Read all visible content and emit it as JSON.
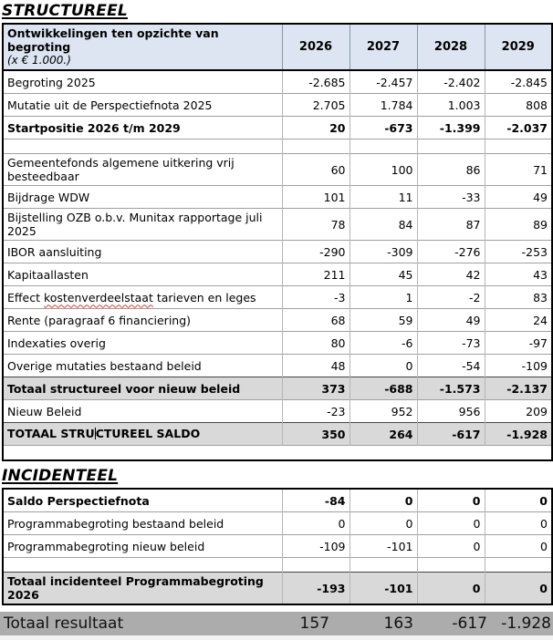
{
  "titles": {
    "structureel": "STRUCTUREEL",
    "incidenteel": "INCIDENTEEL"
  },
  "colors": {
    "header_bg": "#DCE5F1",
    "total_row_bg": "#D9D9D9",
    "result_bar_bg": "#ACACAC",
    "spell_underline": "#E03C31"
  },
  "table_header": {
    "title": "Ontwikkelingen ten opzichte van begroting",
    "subtitle": "(x € 1.000.)",
    "years": [
      "2026",
      "2027",
      "2028",
      "2029"
    ]
  },
  "structureel_rows": [
    {
      "label": "Begroting 2025",
      "values": [
        "-2.685",
        "-2.457",
        "-2.402",
        "-2.845"
      ]
    },
    {
      "label": "Mutatie uit de Perspectiefnota 2025",
      "values": [
        "2.705",
        "1.784",
        "1.003",
        "808"
      ]
    },
    {
      "label": "Startpositie 2026 t/m 2029",
      "values": [
        "20",
        "-673",
        "-1.399",
        "-2.037"
      ],
      "bold": true
    },
    {
      "empty": true
    },
    {
      "label": "Gemeentefonds algemene uitkering vrij besteedbaar",
      "values": [
        "60",
        "100",
        "86",
        "71"
      ]
    },
    {
      "label": "Bijdrage WDW",
      "values": [
        "101",
        "11",
        "-33",
        "49"
      ]
    },
    {
      "label": "Bijstelling OZB o.b.v. Munitax rapportage juli 2025",
      "values": [
        "78",
        "84",
        "87",
        "89"
      ]
    },
    {
      "label": "IBOR aansluiting",
      "values": [
        "-290",
        "-309",
        "-276",
        "-253"
      ]
    },
    {
      "label": "Kapitaallasten",
      "values": [
        "211",
        "45",
        "42",
        "43"
      ]
    },
    {
      "label_parts": [
        "Effect ",
        {
          "spell": "kostenverdeelstaat"
        },
        " tarieven en leges"
      ],
      "values": [
        "-3",
        "1",
        "-2",
        "83"
      ]
    },
    {
      "label": "Rente (paragraaf 6 financiering)",
      "values": [
        "68",
        "59",
        "49",
        "24"
      ]
    },
    {
      "label": "Indexaties overig",
      "values": [
        "80",
        "-6",
        "-73",
        "-97"
      ]
    },
    {
      "label": "Overige mutaties bestaand beleid",
      "values": [
        "48",
        "0",
        "-54",
        "-109"
      ]
    },
    {
      "label": "Totaal structureel voor nieuw beleid",
      "values": [
        "373",
        "-688",
        "-1.573",
        "-2.137"
      ],
      "bold": true,
      "gray": true
    },
    {
      "label": "Nieuw Beleid",
      "values": [
        "-23",
        "952",
        "956",
        "209"
      ]
    },
    {
      "label_parts": [
        "TOTAAL STRU",
        {
          "caret": true
        },
        "CTUREEL SALDO"
      ],
      "values": [
        "350",
        "264",
        "-617",
        "-1.928"
      ],
      "bold": true,
      "gray": true
    },
    {
      "empty": true,
      "clean": true
    }
  ],
  "incidenteel_rows": [
    {
      "label": "Saldo Perspectiefnota",
      "values": [
        "-84",
        "0",
        "0",
        "0"
      ],
      "bold": true
    },
    {
      "label": "Programmabegroting bestaand beleid",
      "values": [
        "0",
        "0",
        "0",
        "0"
      ]
    },
    {
      "label": "Programmabegroting nieuw beleid",
      "values": [
        "-109",
        "-101",
        "0",
        "0"
      ]
    },
    {
      "empty": true
    },
    {
      "label": "Totaal incidenteel Programmabegroting 2026",
      "values": [
        "-193",
        "-101",
        "0",
        "0"
      ],
      "bold": true,
      "gray": true
    }
  ],
  "result_bar": {
    "label": "Totaal resultaat",
    "values": [
      "157",
      "163",
      "-617",
      "-1.928"
    ]
  }
}
